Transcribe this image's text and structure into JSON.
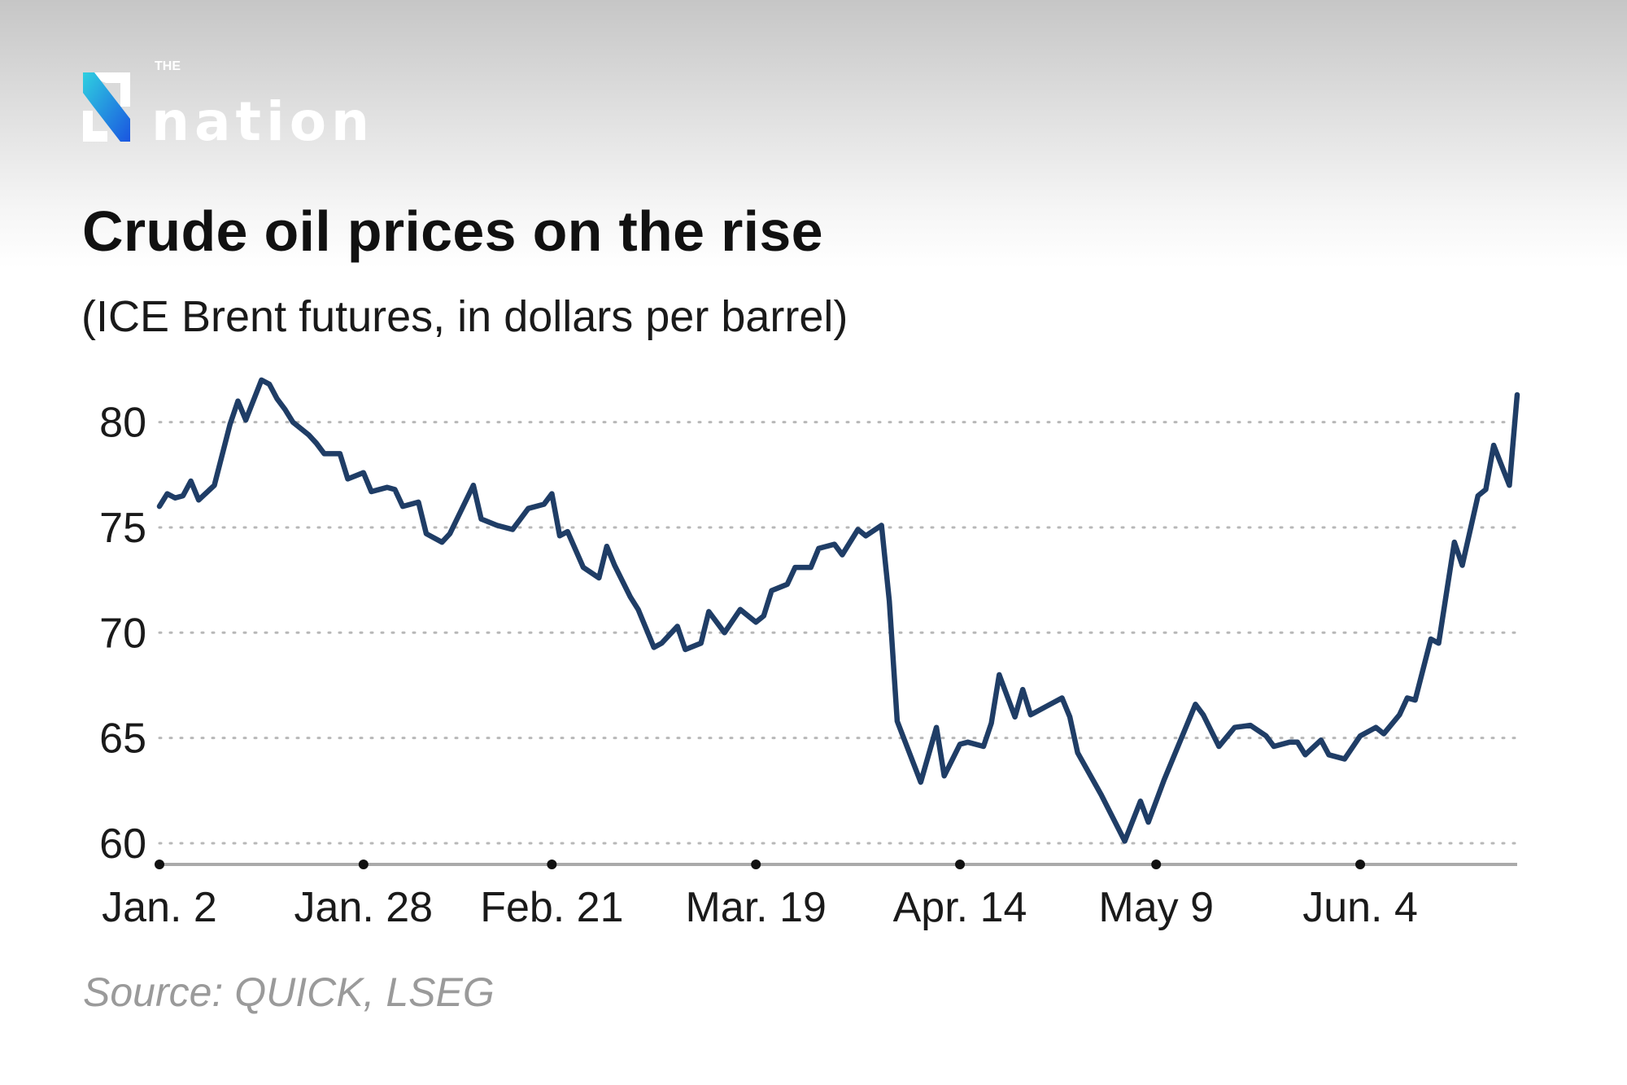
{
  "logo": {
    "text_small": "THE",
    "text_large": "nation",
    "colors": {
      "gradient_start": "#2fd0e0",
      "gradient_end": "#1a55e0"
    }
  },
  "header": {
    "title": "Crude oil prices on the rise",
    "subtitle": "(ICE Brent futures, in dollars per barrel)"
  },
  "footer": {
    "source": "Source: QUICK, LSEG"
  },
  "chart_data": {
    "type": "line",
    "title": "Crude oil prices on the rise",
    "subtitle": "(ICE Brent futures, in dollars per barrel)",
    "xlabel": "",
    "ylabel": "",
    "ylim": [
      60,
      82
    ],
    "yticks": [
      "60",
      "65",
      "70",
      "75",
      "80"
    ],
    "ytick_values": [
      60,
      65,
      70,
      75,
      80
    ],
    "xticks": [
      {
        "date": "01-02",
        "label": "Jan. 2"
      },
      {
        "date": "01-28",
        "label": "Jan. 28"
      },
      {
        "date": "02-21",
        "label": "Feb. 21"
      },
      {
        "date": "03-19",
        "label": "Mar. 19"
      },
      {
        "date": "04-14",
        "label": "Apr. 14"
      },
      {
        "date": "05-09",
        "label": "May 9"
      },
      {
        "date": "06-04",
        "label": "Jun. 4"
      }
    ],
    "xlim": [
      "01-02",
      "06-24"
    ],
    "grid": "horizontal dotted",
    "line_color": "#1f3d66",
    "series": [
      {
        "points": [
          [
            "01-02",
            76.0
          ],
          [
            "01-03",
            76.6
          ],
          [
            "01-04",
            76.4
          ],
          [
            "01-05",
            76.5
          ],
          [
            "01-06",
            77.2
          ],
          [
            "01-07",
            76.3
          ],
          [
            "01-09",
            77.0
          ],
          [
            "01-11",
            79.9
          ],
          [
            "01-12",
            81.0
          ],
          [
            "01-13",
            80.1
          ],
          [
            "01-15",
            82.0
          ],
          [
            "01-16",
            81.8
          ],
          [
            "01-17",
            81.1
          ],
          [
            "01-18",
            80.6
          ],
          [
            "01-19",
            80.0
          ],
          [
            "01-21",
            79.4
          ],
          [
            "01-22",
            79.0
          ],
          [
            "01-23",
            78.5
          ],
          [
            "01-25",
            78.5
          ],
          [
            "01-26",
            77.3
          ],
          [
            "01-28",
            77.6
          ],
          [
            "01-29",
            76.7
          ],
          [
            "01-31",
            76.9
          ],
          [
            "02-01",
            76.8
          ],
          [
            "02-02",
            76.0
          ],
          [
            "02-04",
            76.2
          ],
          [
            "02-05",
            74.7
          ],
          [
            "02-07",
            74.3
          ],
          [
            "02-08",
            74.7
          ],
          [
            "02-11",
            77.0
          ],
          [
            "02-12",
            75.4
          ],
          [
            "02-14",
            75.1
          ],
          [
            "02-16",
            74.9
          ],
          [
            "02-17",
            75.4
          ],
          [
            "02-18",
            75.9
          ],
          [
            "02-20",
            76.1
          ],
          [
            "02-21",
            76.6
          ],
          [
            "02-22",
            74.6
          ],
          [
            "02-23",
            74.8
          ],
          [
            "02-25",
            73.1
          ],
          [
            "02-27",
            72.6
          ],
          [
            "02-28",
            74.1
          ],
          [
            "03-01",
            73.2
          ],
          [
            "03-03",
            71.7
          ],
          [
            "03-04",
            71.1
          ],
          [
            "03-06",
            69.3
          ],
          [
            "03-07",
            69.5
          ],
          [
            "03-09",
            70.3
          ],
          [
            "03-10",
            69.2
          ],
          [
            "03-12",
            69.5
          ],
          [
            "03-13",
            71.0
          ],
          [
            "03-15",
            70.0
          ],
          [
            "03-17",
            71.1
          ],
          [
            "03-19",
            70.5
          ],
          [
            "03-20",
            70.8
          ],
          [
            "03-21",
            72.0
          ],
          [
            "03-23",
            72.3
          ],
          [
            "03-24",
            73.1
          ],
          [
            "03-26",
            73.1
          ],
          [
            "03-27",
            74.0
          ],
          [
            "03-29",
            74.2
          ],
          [
            "03-30",
            73.7
          ],
          [
            "04-01",
            74.9
          ],
          [
            "04-02",
            74.6
          ],
          [
            "04-04",
            75.1
          ],
          [
            "04-05",
            71.5
          ],
          [
            "04-06",
            65.8
          ],
          [
            "04-09",
            62.9
          ],
          [
            "04-11",
            65.5
          ],
          [
            "04-12",
            63.2
          ],
          [
            "04-14",
            64.7
          ],
          [
            "04-15",
            64.8
          ],
          [
            "04-17",
            64.6
          ],
          [
            "04-18",
            65.7
          ],
          [
            "04-19",
            68.0
          ],
          [
            "04-21",
            66.0
          ],
          [
            "04-22",
            67.3
          ],
          [
            "04-23",
            66.1
          ],
          [
            "04-25",
            66.5
          ],
          [
            "04-27",
            66.9
          ],
          [
            "04-28",
            66.0
          ],
          [
            "04-29",
            64.3
          ],
          [
            "05-02",
            62.3
          ],
          [
            "05-05",
            60.1
          ],
          [
            "05-07",
            62.0
          ],
          [
            "05-08",
            61.0
          ],
          [
            "05-10",
            63.0
          ],
          [
            "05-12",
            64.8
          ],
          [
            "05-14",
            66.6
          ],
          [
            "05-15",
            66.1
          ],
          [
            "05-17",
            64.6
          ],
          [
            "05-19",
            65.5
          ],
          [
            "05-21",
            65.6
          ],
          [
            "05-23",
            65.1
          ],
          [
            "05-24",
            64.6
          ],
          [
            "05-26",
            64.8
          ],
          [
            "05-27",
            64.8
          ],
          [
            "05-28",
            64.2
          ],
          [
            "05-30",
            64.9
          ],
          [
            "05-31",
            64.2
          ],
          [
            "06-02",
            64.0
          ],
          [
            "06-04",
            65.1
          ],
          [
            "06-06",
            65.5
          ],
          [
            "06-07",
            65.2
          ],
          [
            "06-09",
            66.1
          ],
          [
            "06-10",
            66.9
          ],
          [
            "06-11",
            66.8
          ],
          [
            "06-13",
            69.7
          ],
          [
            "06-14",
            69.5
          ],
          [
            "06-16",
            74.3
          ],
          [
            "06-17",
            73.2
          ],
          [
            "06-19",
            76.5
          ],
          [
            "06-20",
            76.8
          ],
          [
            "06-21",
            78.9
          ],
          [
            "06-23",
            77.0
          ],
          [
            "06-24",
            81.3
          ]
        ]
      }
    ]
  }
}
